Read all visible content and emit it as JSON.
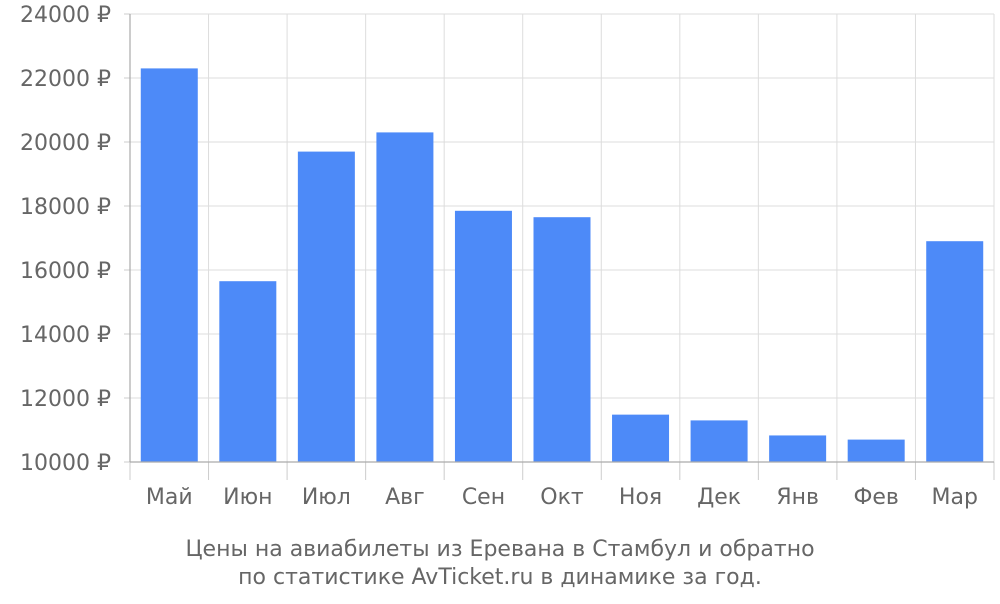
{
  "chart_data": {
    "type": "bar",
    "categories": [
      "Май",
      "Июн",
      "Июл",
      "Авг",
      "Сен",
      "Окт",
      "Ноя",
      "Дек",
      "Янв",
      "Фев",
      "Мар"
    ],
    "series": [
      {
        "values": [
          22300,
          15650,
          19700,
          20300,
          17850,
          17650,
          11480,
          11300,
          10830,
          10700,
          16900
        ],
        "color": "#4d8af8"
      }
    ],
    "ylim": [
      10000,
      24000
    ],
    "y_ticks": [
      10000,
      12000,
      14000,
      16000,
      18000,
      20000,
      22000,
      24000
    ],
    "y_tick_suffix": " ₽",
    "grid": true,
    "legend": "none",
    "caption_lines": [
      "Цены на авиабилеты из Еревана в Стамбул и обратно",
      "по статистике AvTicket.ru в динамике за год."
    ]
  }
}
